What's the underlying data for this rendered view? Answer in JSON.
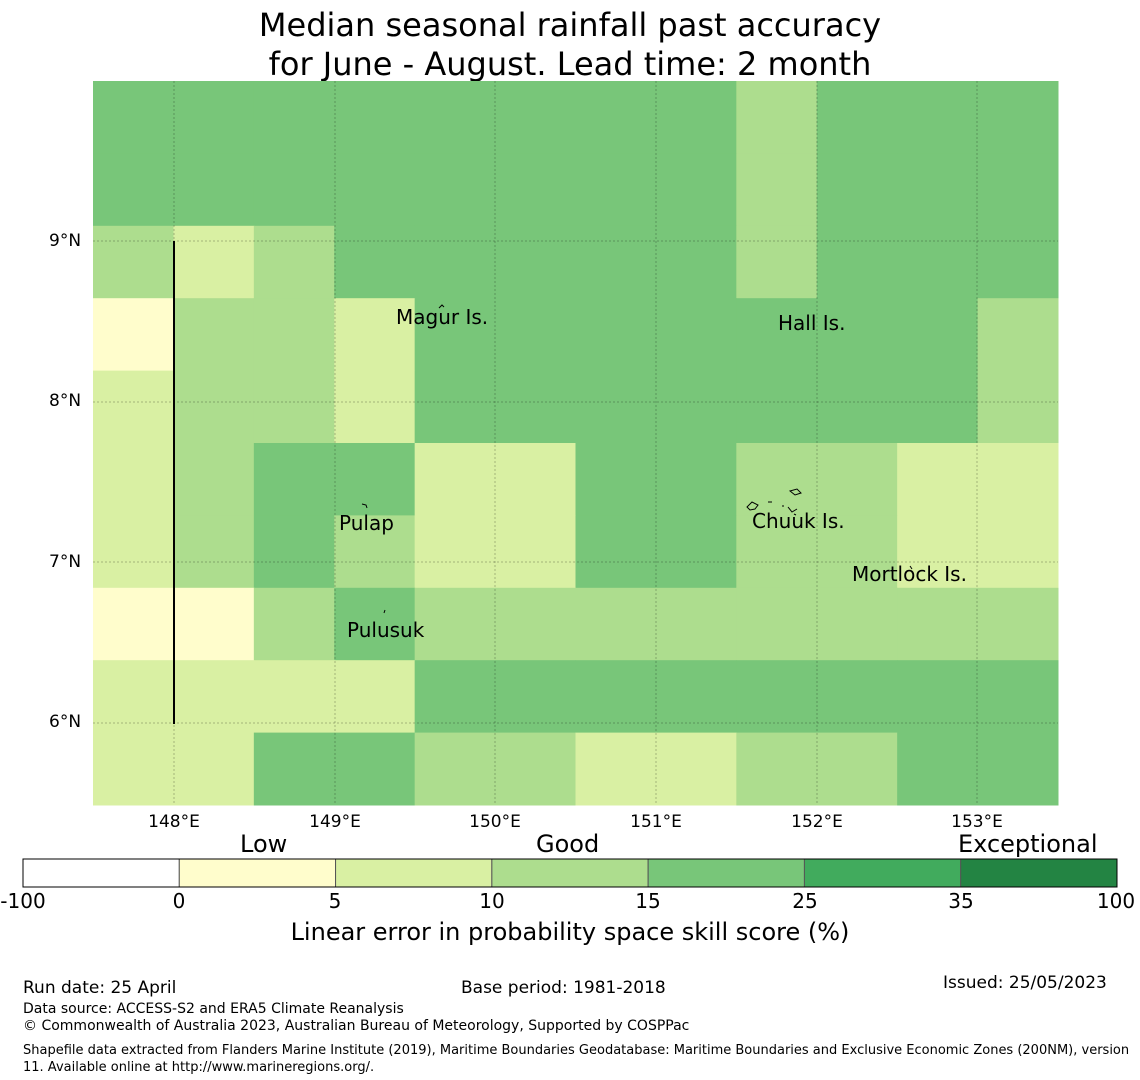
{
  "title": {
    "line1": "Median seasonal rainfall past accuracy",
    "line2": "for June - August. Lead time: 2 month"
  },
  "map": {
    "lat_labels": [
      "9°N",
      "8°N",
      "7°N",
      "6°N"
    ],
    "lon_labels": [
      "148°E",
      "149°E",
      "150°E",
      "151°E",
      "152°E",
      "153°E"
    ],
    "places": [
      "Magur Is.",
      "Hall Is.",
      "Pulap",
      "Chuuk Is.",
      "Mortlock Is.",
      "Pulusuk"
    ],
    "palette": [
      "#fffdcc",
      "#d9f0a3",
      "#addd8e",
      "#78c679",
      "#41ab5d",
      "#238443"
    ],
    "grid_classes": [
      [
        3,
        3,
        3,
        3,
        3,
        3,
        3,
        3,
        2,
        3,
        3,
        3
      ],
      [
        3,
        3,
        3,
        3,
        3,
        3,
        3,
        3,
        2,
        3,
        3,
        3
      ],
      [
        2,
        1,
        2,
        3,
        3,
        3,
        3,
        3,
        2,
        3,
        3,
        3
      ],
      [
        0,
        2,
        2,
        1,
        3,
        3,
        3,
        3,
        3,
        3,
        3,
        2
      ],
      [
        1,
        2,
        2,
        1,
        3,
        3,
        3,
        3,
        3,
        3,
        3,
        2
      ],
      [
        1,
        2,
        3,
        3,
        1,
        1,
        3,
        3,
        2,
        2,
        1,
        1
      ],
      [
        1,
        2,
        3,
        2,
        1,
        1,
        3,
        3,
        2,
        2,
        1,
        1
      ],
      [
        0,
        0,
        2,
        3,
        2,
        2,
        2,
        2,
        2,
        2,
        2,
        2
      ],
      [
        1,
        1,
        1,
        1,
        3,
        3,
        3,
        3,
        3,
        3,
        3,
        3
      ],
      [
        1,
        1,
        3,
        3,
        2,
        2,
        1,
        1,
        2,
        2,
        3,
        3
      ]
    ]
  },
  "colorbar": {
    "categories": [
      "Low",
      "Good",
      "Exceptional"
    ],
    "ticks": [
      "-100",
      "0",
      "5",
      "10",
      "15",
      "25",
      "35",
      "100"
    ],
    "colors": [
      "#ffffff",
      "#fffdcc",
      "#d9f0a3",
      "#addd8e",
      "#78c679",
      "#41ab5d",
      "#238443"
    ],
    "label": "Linear error in probability space skill score (%)"
  },
  "footer": {
    "run_date": "Run date: 25 April",
    "base_period": "Base period: 1981-2018",
    "issued": "Issued: 25/05/2023",
    "data_source": "Data source: ACCESS-S2 and ERA5 Climate Reanalysis",
    "copyright": "© Commonwealth of Australia 2023, Australian Bureau of Meteorology, Supported by COSPPac",
    "shapefile": "Shapefile data extracted from Flanders Marine Institute (2019), Maritime Boundaries Geodatabase: Maritime Boundaries and Exclusive Economic Zones (200NM), version 11. Available online at http://www.marineregions.org/."
  }
}
